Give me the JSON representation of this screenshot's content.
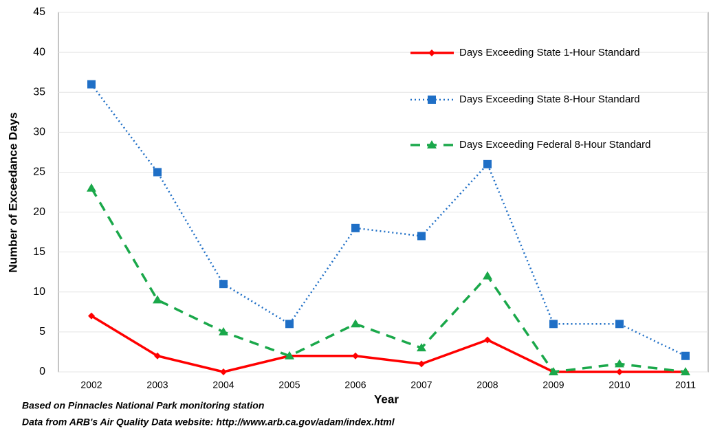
{
  "chart_data": {
    "type": "line",
    "y_label": "Number of Exceedance Days",
    "x_label": "Year",
    "categories": [
      "2002",
      "2003",
      "2004",
      "2005",
      "2006",
      "2007",
      "2008",
      "2009",
      "2010",
      "2011"
    ],
    "series": [
      {
        "name": "Days Exceeding State 1-Hour Standard",
        "color": "#ff0000",
        "line_style": "solid",
        "marker": "diamond",
        "values": [
          7,
          2,
          0,
          2,
          2,
          1,
          4,
          0,
          0,
          0
        ]
      },
      {
        "name": "Days Exceeding State 8-Hour Standard",
        "color": "#1f6fc6",
        "line_style": "dotted",
        "marker": "square",
        "values": [
          36,
          25,
          11,
          6,
          18,
          17,
          26,
          6,
          6,
          2
        ]
      },
      {
        "name": "Days Exceeding Federal 8-Hour Standard",
        "color": "#1aa84a",
        "line_style": "dashed",
        "marker": "triangle",
        "values": [
          23,
          9,
          5,
          2,
          6,
          3,
          12,
          0,
          1,
          0
        ]
      }
    ],
    "ylim": [
      0,
      45
    ],
    "yticks": [
      0,
      5,
      10,
      15,
      20,
      25,
      30,
      35,
      40,
      45
    ],
    "grid": true,
    "legend": "upper right",
    "notes": [
      "Based on Pinnacles National Park  monitoring station",
      "Data from ARB's Air Quality Data  website: http://www.arb.ca.gov/adam/index.html"
    ]
  }
}
